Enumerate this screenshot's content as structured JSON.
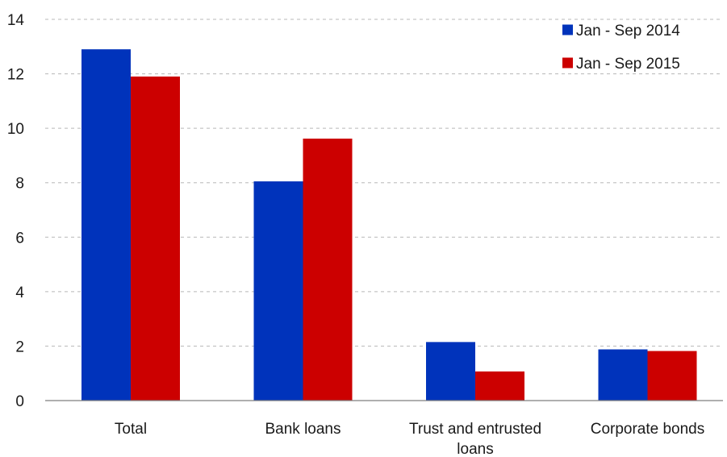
{
  "chart_data": {
    "type": "bar",
    "title": "",
    "xlabel": "",
    "ylabel": "",
    "categories": [
      "Total",
      "Bank loans",
      "Trust and entrusted loans",
      "Corporate bonds"
    ],
    "series": [
      {
        "name": "Jan - Sep 2014",
        "color": "#0033bb",
        "values": [
          12.9,
          8.05,
          2.15,
          1.88
        ]
      },
      {
        "name": "Jan - Sep 2015",
        "color": "#cc0000",
        "values": [
          11.9,
          9.62,
          1.07,
          1.82
        ]
      }
    ],
    "ylim": [
      0,
      14
    ],
    "yticks": [
      0,
      2,
      4,
      6,
      8,
      10,
      12,
      14
    ],
    "grid": true,
    "legend_position": "top-right"
  }
}
